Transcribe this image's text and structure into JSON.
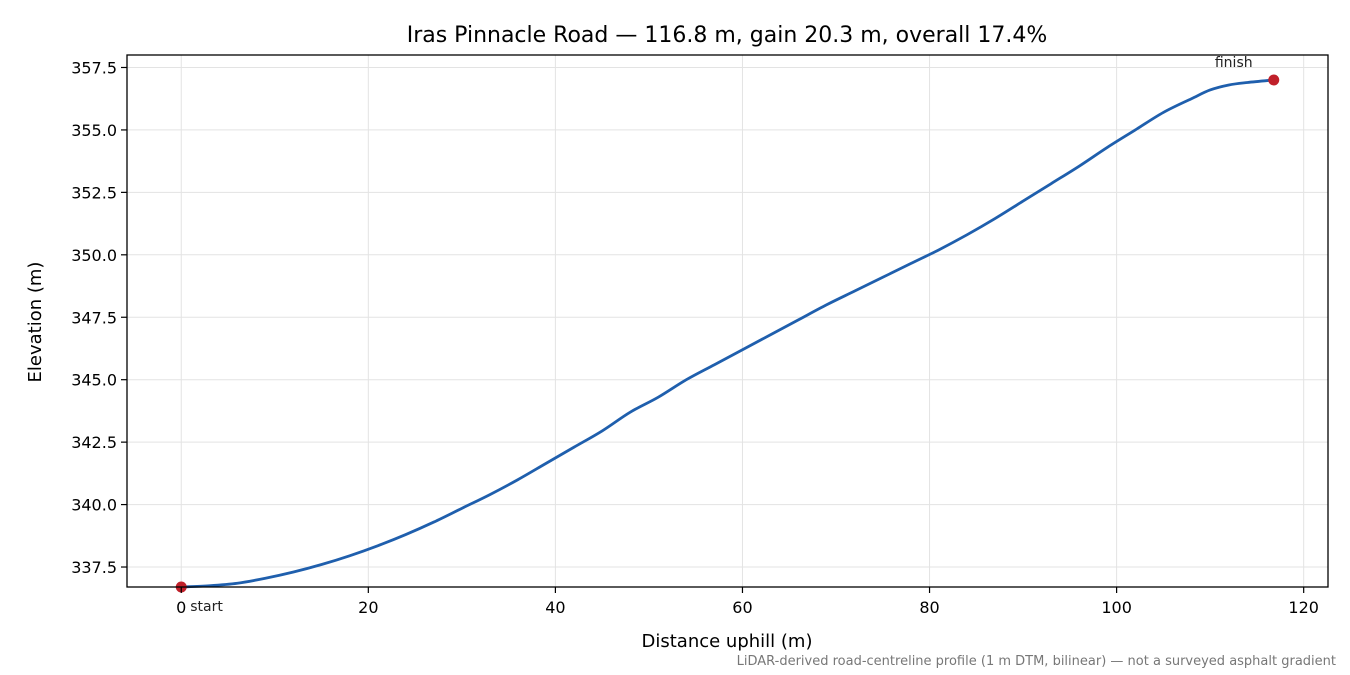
{
  "chart_data": {
    "type": "line",
    "title": "Iras Pinnacle Road — 116.8 m, gain 20.3 m, overall 17.4%",
    "xlabel": "Distance uphill (m)",
    "ylabel": "Elevation (m)",
    "xlim": [
      -5.8,
      122.6
    ],
    "ylim": [
      336.7,
      358.0
    ],
    "xticks": [
      0,
      20,
      40,
      60,
      80,
      100,
      120
    ],
    "yticks": [
      337.5,
      340.0,
      342.5,
      345.0,
      347.5,
      350.0,
      352.5,
      355.0,
      357.5
    ],
    "xtick_labels": [
      "0",
      "20",
      "40",
      "60",
      "80",
      "100",
      "120"
    ],
    "ytick_labels": [
      "337.5",
      "340.0",
      "342.5",
      "345.0",
      "347.5",
      "350.0",
      "352.5",
      "355.0",
      "357.5"
    ],
    "grid": true,
    "line_color": "#1f5fad",
    "marker_color": "#c0202a",
    "series": [
      {
        "x": [
          0,
          3,
          6,
          9,
          12,
          15,
          18,
          21,
          24,
          27,
          30,
          33,
          36,
          39,
          42,
          45,
          48,
          51,
          54,
          57,
          60,
          63,
          66,
          69,
          72,
          75,
          78,
          81,
          84,
          87,
          90,
          93,
          96,
          99,
          102,
          105,
          108,
          110,
          112,
          114,
          116.8
        ],
        "y": [
          336.7,
          336.75,
          336.85,
          337.05,
          337.3,
          337.6,
          337.95,
          338.35,
          338.8,
          339.3,
          339.85,
          340.4,
          341.0,
          341.65,
          342.3,
          342.95,
          343.7,
          344.3,
          345.0,
          345.6,
          346.2,
          346.8,
          347.4,
          348.0,
          348.55,
          349.1,
          349.65,
          350.2,
          350.8,
          351.45,
          352.15,
          352.85,
          353.55,
          354.3,
          355.0,
          355.7,
          356.25,
          356.6,
          356.8,
          356.9,
          357.0
        ]
      }
    ],
    "annotations": [
      {
        "text": "start",
        "x": 0,
        "y": 336.7
      },
      {
        "text": "finish",
        "x": 116.8,
        "y": 357.0
      }
    ],
    "footnote": "LiDAR-derived road-centreline profile (1 m DTM, bilinear) — not a surveyed asphalt gradient"
  }
}
